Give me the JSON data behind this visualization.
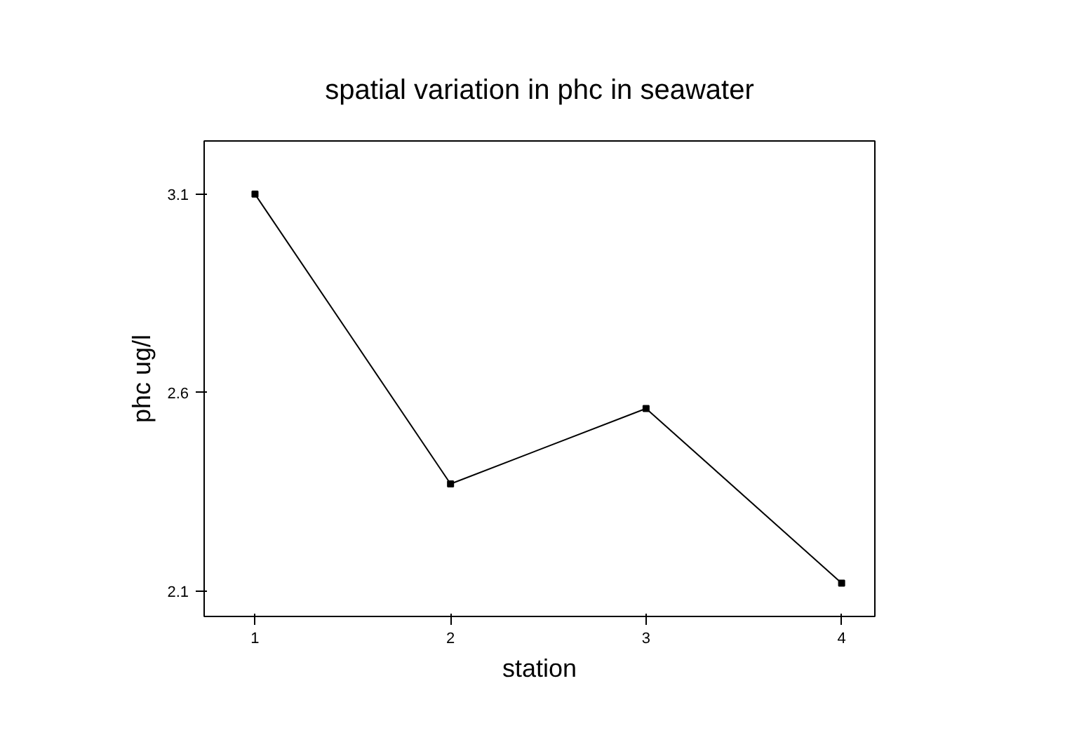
{
  "chart_data": {
    "type": "line",
    "title": "spatial variation in phc in seawater",
    "xlabel": "station",
    "ylabel": "phc ug/l",
    "x": [
      1,
      2,
      3,
      4
    ],
    "series": [
      {
        "color": "#000000",
        "values": [
          3.1,
          2.37,
          2.56,
          2.12
        ]
      }
    ],
    "xlim": [
      0.74,
      4.17
    ],
    "xticks": [
      1,
      2,
      3,
      4
    ],
    "ylim": [
      2.036,
      3.234
    ],
    "yticks": [
      2.1,
      2.6,
      3.1
    ],
    "grid": false,
    "marker": "square",
    "line_style": "solid"
  }
}
